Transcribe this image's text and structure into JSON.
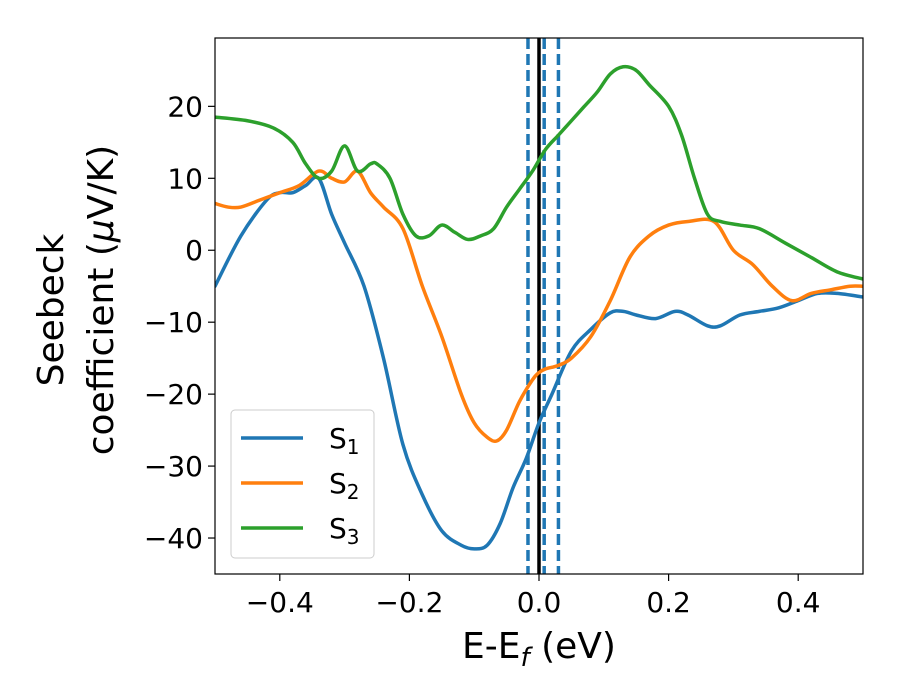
{
  "chart_data": {
    "type": "line",
    "xlabel": {
      "main": "E-E",
      "sub": "f",
      "rest": " (eV)"
    },
    "ylabel": {
      "line1": "Seebeck",
      "line2_pre": "coefficient  (",
      "line2_mu": "μ",
      "line2_post": "V/K)"
    },
    "xlim": [
      -0.5,
      0.5
    ],
    "ylim": [
      -45,
      29.5
    ],
    "xticks": [
      -0.4,
      -0.2,
      0.0,
      0.2,
      0.4
    ],
    "xtick_labels": [
      "−0.4",
      "−0.2",
      "0.0",
      "0.2",
      "0.4"
    ],
    "yticks": [
      -40,
      -30,
      -20,
      -10,
      0,
      10,
      20
    ],
    "ytick_labels": [
      "−40",
      "−30",
      "−20",
      "−10",
      "0",
      "10",
      "20"
    ],
    "grid": false,
    "legend_position": "lower-left",
    "vlines": [
      {
        "x": 0.0,
        "style": "solid",
        "color": "#000000"
      },
      {
        "x": -0.017,
        "style": "dashed",
        "color": "#1f77b4"
      },
      {
        "x": 0.008,
        "style": "dashed",
        "color": "#1f77b4"
      },
      {
        "x": 0.03,
        "style": "dashed",
        "color": "#1f77b4"
      }
    ],
    "series": [
      {
        "name": "S",
        "sub": "1",
        "color": "#1f77b4",
        "x": [
          -0.5,
          -0.46,
          -0.42,
          -0.4,
          -0.38,
          -0.36,
          -0.34,
          -0.32,
          -0.3,
          -0.27,
          -0.24,
          -0.21,
          -0.18,
          -0.15,
          -0.12,
          -0.1,
          -0.08,
          -0.06,
          -0.04,
          -0.02,
          0,
          0.02,
          0.05,
          0.08,
          0.11,
          0.13,
          0.15,
          0.18,
          0.21,
          0.23,
          0.26,
          0.28,
          0.31,
          0.34,
          0.37,
          0.4,
          0.43,
          0.46,
          0.5
        ],
        "y": [
          -5,
          2,
          7,
          8,
          8,
          9,
          10,
          5,
          1,
          -5,
          -15,
          -27,
          -34,
          -39,
          -41,
          -41.5,
          -41,
          -38,
          -33,
          -29,
          -24,
          -20,
          -14,
          -11,
          -8.7,
          -8.5,
          -9,
          -9.5,
          -8.5,
          -9,
          -10.5,
          -10.5,
          -9,
          -8.5,
          -8,
          -7,
          -6,
          -6,
          -6.5
        ]
      },
      {
        "name": "S",
        "sub": "2",
        "color": "#ff7f0e",
        "x": [
          -0.5,
          -0.48,
          -0.46,
          -0.43,
          -0.4,
          -0.37,
          -0.34,
          -0.32,
          -0.3,
          -0.28,
          -0.26,
          -0.24,
          -0.21,
          -0.18,
          -0.15,
          -0.12,
          -0.1,
          -0.08,
          -0.065,
          -0.05,
          -0.03,
          -0.01,
          0,
          0.01,
          0.03,
          0.05,
          0.08,
          0.11,
          0.14,
          0.17,
          0.2,
          0.23,
          0.27,
          0.3,
          0.33,
          0.36,
          0.39,
          0.42,
          0.45,
          0.48,
          0.5
        ],
        "y": [
          6.5,
          6,
          6,
          7,
          8,
          9,
          11,
          10,
          9.5,
          11,
          8,
          6,
          3,
          -5,
          -12,
          -20,
          -24,
          -26,
          -26.5,
          -25,
          -21,
          -18,
          -17,
          -16.5,
          -16,
          -15,
          -12,
          -7,
          -1,
          2,
          3.5,
          4,
          4,
          0,
          -2,
          -5,
          -7,
          -6,
          -5.5,
          -5,
          -5
        ]
      },
      {
        "name": "S",
        "sub": "3",
        "color": "#2ca02c",
        "x": [
          -0.5,
          -0.45,
          -0.41,
          -0.38,
          -0.36,
          -0.34,
          -0.32,
          -0.3,
          -0.28,
          -0.26,
          -0.25,
          -0.23,
          -0.21,
          -0.19,
          -0.17,
          -0.15,
          -0.13,
          -0.11,
          -0.09,
          -0.07,
          -0.05,
          -0.03,
          -0.01,
          0.01,
          0.03,
          0.05,
          0.07,
          0.09,
          0.11,
          0.13,
          0.15,
          0.17,
          0.2,
          0.22,
          0.24,
          0.26,
          0.28,
          0.31,
          0.34,
          0.38,
          0.42,
          0.46,
          0.5
        ],
        "y": [
          18.5,
          18,
          17,
          15,
          12,
          10,
          11,
          14.5,
          11,
          12,
          12,
          10,
          5,
          2,
          2,
          3.5,
          2.5,
          1.5,
          2,
          3,
          6,
          8.5,
          11,
          14,
          16,
          18,
          20,
          22,
          24.5,
          25.5,
          25,
          23,
          20,
          16,
          10,
          5,
          4,
          3.5,
          3,
          1,
          -1,
          -3,
          -4
        ]
      }
    ]
  }
}
